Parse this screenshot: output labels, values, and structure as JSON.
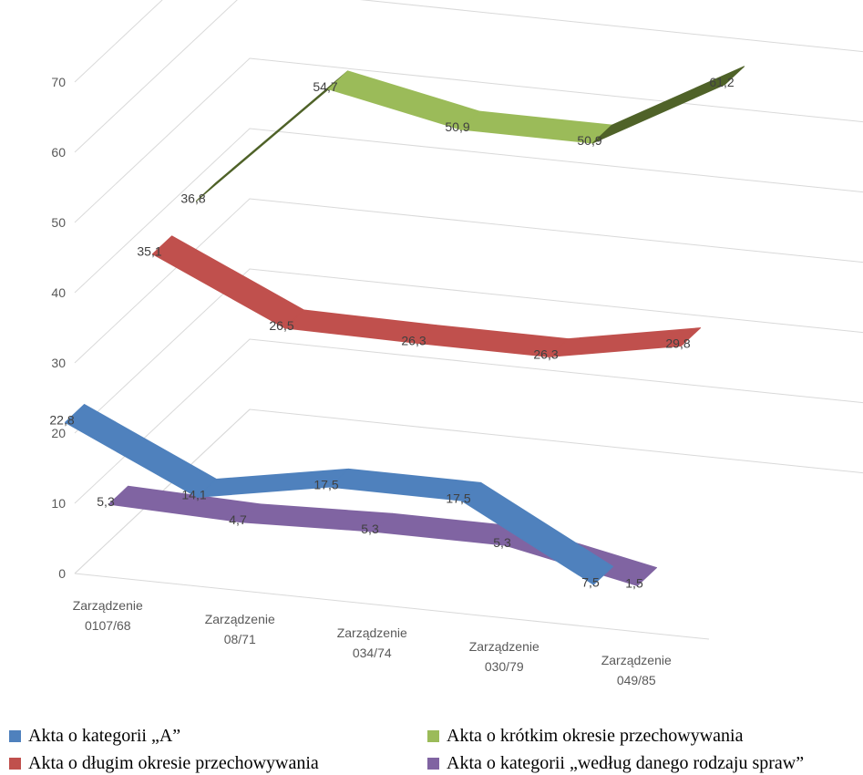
{
  "chart_data": {
    "type": "line",
    "three_d": true,
    "categories": [
      "Zarządzenie 0107/68",
      "Zarządzenie 08/71",
      "Zarządzenie 034/74",
      "Zarządzenie 030/79",
      "Zarządzenie 049/85"
    ],
    "category_lines": [
      [
        "Zarządzenie",
        "0107/68"
      ],
      [
        "Zarządzenie",
        "08/71"
      ],
      [
        "Zarządzenie",
        "034/74"
      ],
      [
        "Zarządzenie",
        "030/79"
      ],
      [
        "Zarządzenie",
        "049/85"
      ]
    ],
    "ylim": [
      0,
      70
    ],
    "yticks": [
      "0",
      "10",
      "20",
      "30",
      "40",
      "50",
      "60",
      "70"
    ],
    "grid": true,
    "legend_position": "bottom",
    "series": [
      {
        "name": "Akta o kategorii „A”",
        "color": "#4f81bd",
        "values": [
          22.8,
          14.1,
          17.5,
          17.5,
          7.5
        ],
        "labels": [
          "22,8",
          "14,1",
          "17,5",
          "17,5",
          "7,5"
        ]
      },
      {
        "name": "Akta o kategorii „według danego rodzaju spraw”",
        "color": "#8064a2",
        "values": [
          5.3,
          4.7,
          5.3,
          5.3,
          1.5
        ],
        "labels": [
          "5,3",
          "4,7",
          "5,3",
          "5,3",
          "1,5"
        ]
      },
      {
        "name": "Akta o długim okresie przechowywania",
        "color": "#c0504d",
        "values": [
          35.1,
          26.5,
          26.3,
          26.3,
          29.8
        ],
        "labels": [
          "35,1",
          "26,5",
          "26,3",
          "26,3",
          "29,8"
        ]
      },
      {
        "name": "Akta o krótkim okresie przechowywania",
        "color": "#9bbb59",
        "side_color": "#4f6228",
        "values": [
          36.8,
          54.7,
          50.9,
          50.9,
          61.2
        ],
        "labels": [
          "36,8",
          "54,7",
          "50,9",
          "50,9",
          "61,2"
        ]
      }
    ]
  }
}
